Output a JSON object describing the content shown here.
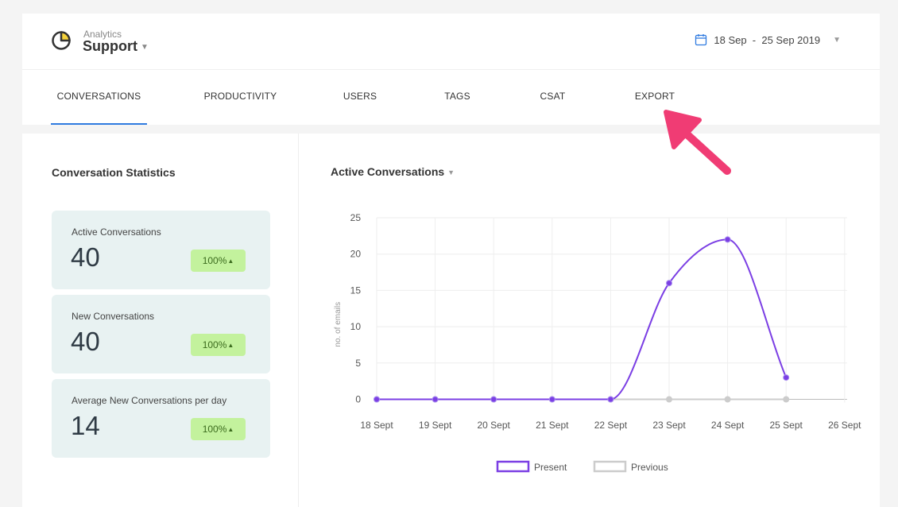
{
  "brand": {
    "small": "Analytics",
    "name": "Support"
  },
  "date_range": "18 Sep  -  25 Sep 2019",
  "tabs": [
    {
      "label": "CONVERSATIONS",
      "active": true
    },
    {
      "label": "PRODUCTIVITY"
    },
    {
      "label": "USERS"
    },
    {
      "label": "TAGS"
    },
    {
      "label": "CSAT"
    },
    {
      "label": "EXPORT"
    }
  ],
  "stats": {
    "title": "Conversation Statistics",
    "cards": [
      {
        "label": "Active Conversations",
        "value": "40",
        "change": "100%"
      },
      {
        "label": "New Conversations",
        "value": "40",
        "change": "100%"
      },
      {
        "label": "Average New Conversations per day",
        "value": "14",
        "change": "100%"
      }
    ]
  },
  "chart_title": "Active Conversations",
  "chart_data": {
    "type": "line",
    "categories": [
      "18 Sept",
      "19 Sept",
      "20 Sept",
      "21 Sept",
      "22 Sept",
      "23 Sept",
      "24 Sept",
      "25 Sept",
      "26 Sept"
    ],
    "series": [
      {
        "name": "Present",
        "color": "#7b3fe4",
        "values": [
          0,
          0,
          0,
          0,
          0,
          16,
          22,
          3,
          null
        ]
      },
      {
        "name": "Previous",
        "color": "#cccccc",
        "values": [
          0,
          0,
          0,
          0,
          0,
          0,
          0,
          0,
          null
        ]
      }
    ],
    "ylabel": "no. of emails",
    "ylim": [
      0,
      25
    ],
    "yticks": [
      0,
      5,
      10,
      15,
      20,
      25
    ],
    "grid": true,
    "legend": "bottom"
  },
  "colors": {
    "accent": "#2f7be0",
    "badge": "#c3f29d",
    "card_bg": "#e8f2f2",
    "annotation_arrow": "#f03c74"
  }
}
